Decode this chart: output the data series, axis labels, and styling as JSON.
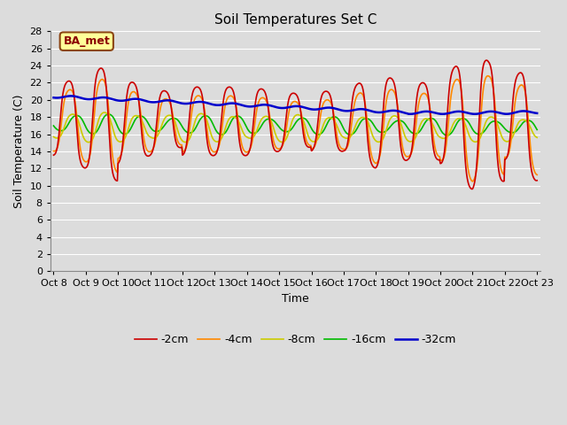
{
  "title": "Soil Temperatures Set C",
  "xlabel": "Time",
  "ylabel": "Soil Temperature (C)",
  "ylim": [
    0,
    28
  ],
  "yticks": [
    0,
    2,
    4,
    6,
    8,
    10,
    12,
    14,
    16,
    18,
    20,
    22,
    24,
    26,
    28
  ],
  "background_color": "#dcdcdc",
  "plot_bg_color": "#dcdcdc",
  "grid_color": "#ffffff",
  "annotation_text": "BA_met",
  "annotation_bg": "#ffff99",
  "annotation_border": "#8B4513",
  "annotation_text_color": "#8B0000",
  "legend_labels": [
    "-2cm",
    "-4cm",
    "-8cm",
    "-16cm",
    "-32cm"
  ],
  "line_colors": [
    "#cc0000",
    "#ff8800",
    "#cccc00",
    "#00bb00",
    "#0000cc"
  ],
  "line_widths": [
    1.2,
    1.2,
    1.2,
    1.2,
    1.8
  ],
  "xtick_labels": [
    "Oct 8",
    "Oct 9",
    "Oct 10",
    "Oct 11",
    "Oct 12",
    "Oct 13",
    "Oct 14",
    "Oct 15",
    "Oct 16",
    "Oct 17",
    "Oct 18",
    "Oct 19",
    "Oct 20",
    "Oct 21",
    "Oct 22",
    "Oct 23"
  ],
  "figwidth": 6.4,
  "figheight": 4.8,
  "dpi": 100
}
